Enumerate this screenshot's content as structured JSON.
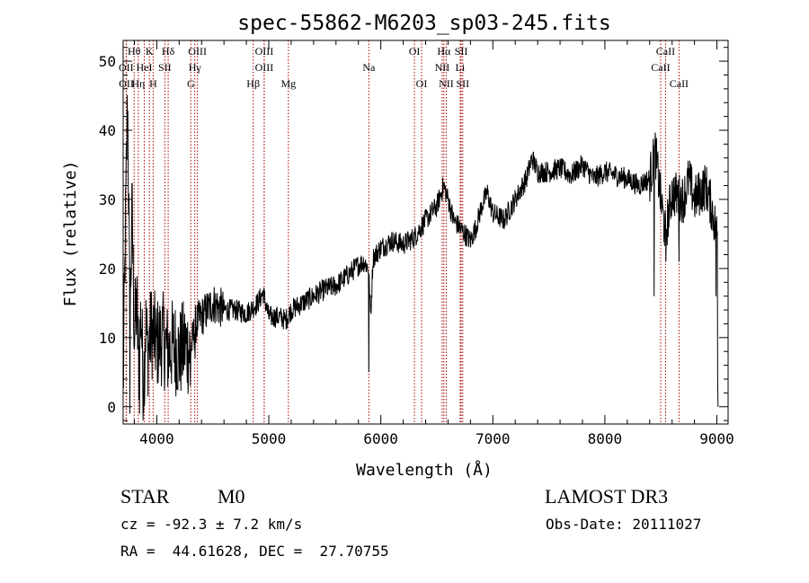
{
  "chart_data": {
    "type": "line",
    "title": "spec-55862-M6203_sp03-245.fits",
    "xlabel": "Wavelength (Å)",
    "ylabel": "Flux (relative)",
    "xlim": [
      3700,
      9100
    ],
    "ylim": [
      -2.5,
      53
    ],
    "xticks": [
      4000,
      5000,
      6000,
      7000,
      8000,
      9000
    ],
    "yticks": [
      0,
      10,
      20,
      30,
      40,
      50
    ],
    "line_color": "#000000",
    "marker_color": "#aa0000",
    "spectrum_anchors": [
      [
        3700,
        2
      ],
      [
        3720,
        25
      ],
      [
        3740,
        45
      ],
      [
        3760,
        12
      ],
      [
        3780,
        28
      ],
      [
        3800,
        10
      ],
      [
        3820,
        15
      ],
      [
        3840,
        6
      ],
      [
        3860,
        14
      ],
      [
        3880,
        3
      ],
      [
        3900,
        12
      ],
      [
        3920,
        8
      ],
      [
        3950,
        11
      ],
      [
        3980,
        10
      ],
      [
        4000,
        9
      ],
      [
        4050,
        10
      ],
      [
        4100,
        8
      ],
      [
        4150,
        9
      ],
      [
        4200,
        7.5
      ],
      [
        4250,
        9
      ],
      [
        4300,
        8
      ],
      [
        4350,
        12
      ],
      [
        4400,
        13
      ],
      [
        4450,
        14
      ],
      [
        4500,
        15
      ],
      [
        4600,
        14
      ],
      [
        4700,
        14
      ],
      [
        4800,
        13.5
      ],
      [
        4900,
        15
      ],
      [
        4950,
        16.5
      ],
      [
        5000,
        13
      ],
      [
        5100,
        13
      ],
      [
        5150,
        12.5
      ],
      [
        5200,
        14
      ],
      [
        5300,
        15
      ],
      [
        5400,
        16
      ],
      [
        5500,
        17
      ],
      [
        5600,
        17.5
      ],
      [
        5700,
        19
      ],
      [
        5800,
        20.5
      ],
      [
        5850,
        21
      ],
      [
        5890,
        20
      ],
      [
        5910,
        13
      ],
      [
        5930,
        21.5
      ],
      [
        6000,
        23
      ],
      [
        6100,
        24
      ],
      [
        6200,
        23.5
      ],
      [
        6300,
        24.5
      ],
      [
        6400,
        27
      ],
      [
        6500,
        29
      ],
      [
        6560,
        32
      ],
      [
        6600,
        30
      ],
      [
        6650,
        27
      ],
      [
        6700,
        26
      ],
      [
        6750,
        25
      ],
      [
        6800,
        24
      ],
      [
        6850,
        26
      ],
      [
        6900,
        29
      ],
      [
        6950,
        31
      ],
      [
        7000,
        28
      ],
      [
        7100,
        27
      ],
      [
        7200,
        30
      ],
      [
        7300,
        33
      ],
      [
        7350,
        36
      ],
      [
        7400,
        34
      ],
      [
        7500,
        34
      ],
      [
        7600,
        34.5
      ],
      [
        7700,
        33.5
      ],
      [
        7800,
        35
      ],
      [
        7900,
        33
      ],
      [
        8000,
        34
      ],
      [
        8100,
        33.5
      ],
      [
        8200,
        33
      ],
      [
        8300,
        32
      ],
      [
        8400,
        33
      ],
      [
        8450,
        37
      ],
      [
        8500,
        30
      ],
      [
        8540,
        25
      ],
      [
        8600,
        31
      ],
      [
        8700,
        30
      ],
      [
        8750,
        33
      ],
      [
        8800,
        30
      ],
      [
        8850,
        31
      ],
      [
        8900,
        32
      ],
      [
        8950,
        29
      ],
      [
        9000,
        25
      ]
    ],
    "spectrum_spikes": [
      [
        5893,
        5
      ],
      [
        3760,
        -1
      ],
      [
        3845,
        -1
      ],
      [
        3890,
        1
      ],
      [
        8440,
        16
      ],
      [
        8545,
        21
      ],
      [
        8660,
        21
      ],
      [
        9005,
        4
      ],
      [
        9010,
        0
      ],
      [
        8990,
        16
      ],
      [
        4340,
        7
      ],
      [
        4300,
        3
      ],
      [
        6564,
        32.5
      ]
    ],
    "lines": [
      {
        "label": "Hθ",
        "wavelength": 3798,
        "row": 0
      },
      {
        "label": "K",
        "wavelength": 3934,
        "row": 0
      },
      {
        "label": "Hδ",
        "wavelength": 4102,
        "row": 0
      },
      {
        "label": "OIII",
        "wavelength": 4363,
        "row": 0
      },
      {
        "label": "OIII",
        "wavelength": 4959,
        "row": 0
      },
      {
        "label": "OI",
        "wavelength": 6300,
        "row": 0
      },
      {
        "label": "Hα",
        "wavelength": 6563,
        "row": 0
      },
      {
        "label": "SII",
        "wavelength": 6717,
        "row": 0
      },
      {
        "label": "CaII",
        "wavelength": 8542,
        "row": 0
      },
      {
        "label": "OII",
        "wavelength": 3727,
        "row": 1
      },
      {
        "label": "HeI",
        "wavelength": 3889,
        "row": 1
      },
      {
        "label": "SII",
        "wavelength": 4072,
        "row": 1
      },
      {
        "label": "Hγ",
        "wavelength": 4340,
        "row": 1
      },
      {
        "label": "OIII",
        "wavelength": 4959,
        "row": 1
      },
      {
        "label": "Na",
        "wavelength": 5893,
        "row": 1
      },
      {
        "label": "NII",
        "wavelength": 6548,
        "row": 1
      },
      {
        "label": "Li",
        "wavelength": 6708,
        "row": 1
      },
      {
        "label": "CaII",
        "wavelength": 8498,
        "row": 1
      },
      {
        "label": "OII",
        "wavelength": 3729,
        "row": 2
      },
      {
        "label": "Hη",
        "wavelength": 3835,
        "row": 2
      },
      {
        "label": "H",
        "wavelength": 3968,
        "row": 2
      },
      {
        "label": "G",
        "wavelength": 4304,
        "row": 2
      },
      {
        "label": "Hβ",
        "wavelength": 4861,
        "row": 2
      },
      {
        "label": "Mg",
        "wavelength": 5175,
        "row": 2
      },
      {
        "label": "OI",
        "wavelength": 6364,
        "row": 2
      },
      {
        "label": "NII",
        "wavelength": 6584,
        "row": 2
      },
      {
        "label": "SII",
        "wavelength": 6731,
        "row": 2
      },
      {
        "label": "CaII",
        "wavelength": 8662,
        "row": 2
      }
    ]
  },
  "info": {
    "class_label": "STAR",
    "subclass_label": "M0",
    "survey": "LAMOST DR3",
    "cz_text": "cz = -92.3 ± 7.2 km/s",
    "obs_date_text": "Obs-Date: 20111027",
    "radec_text": "RA =  44.61628, DEC =  27.70755"
  }
}
